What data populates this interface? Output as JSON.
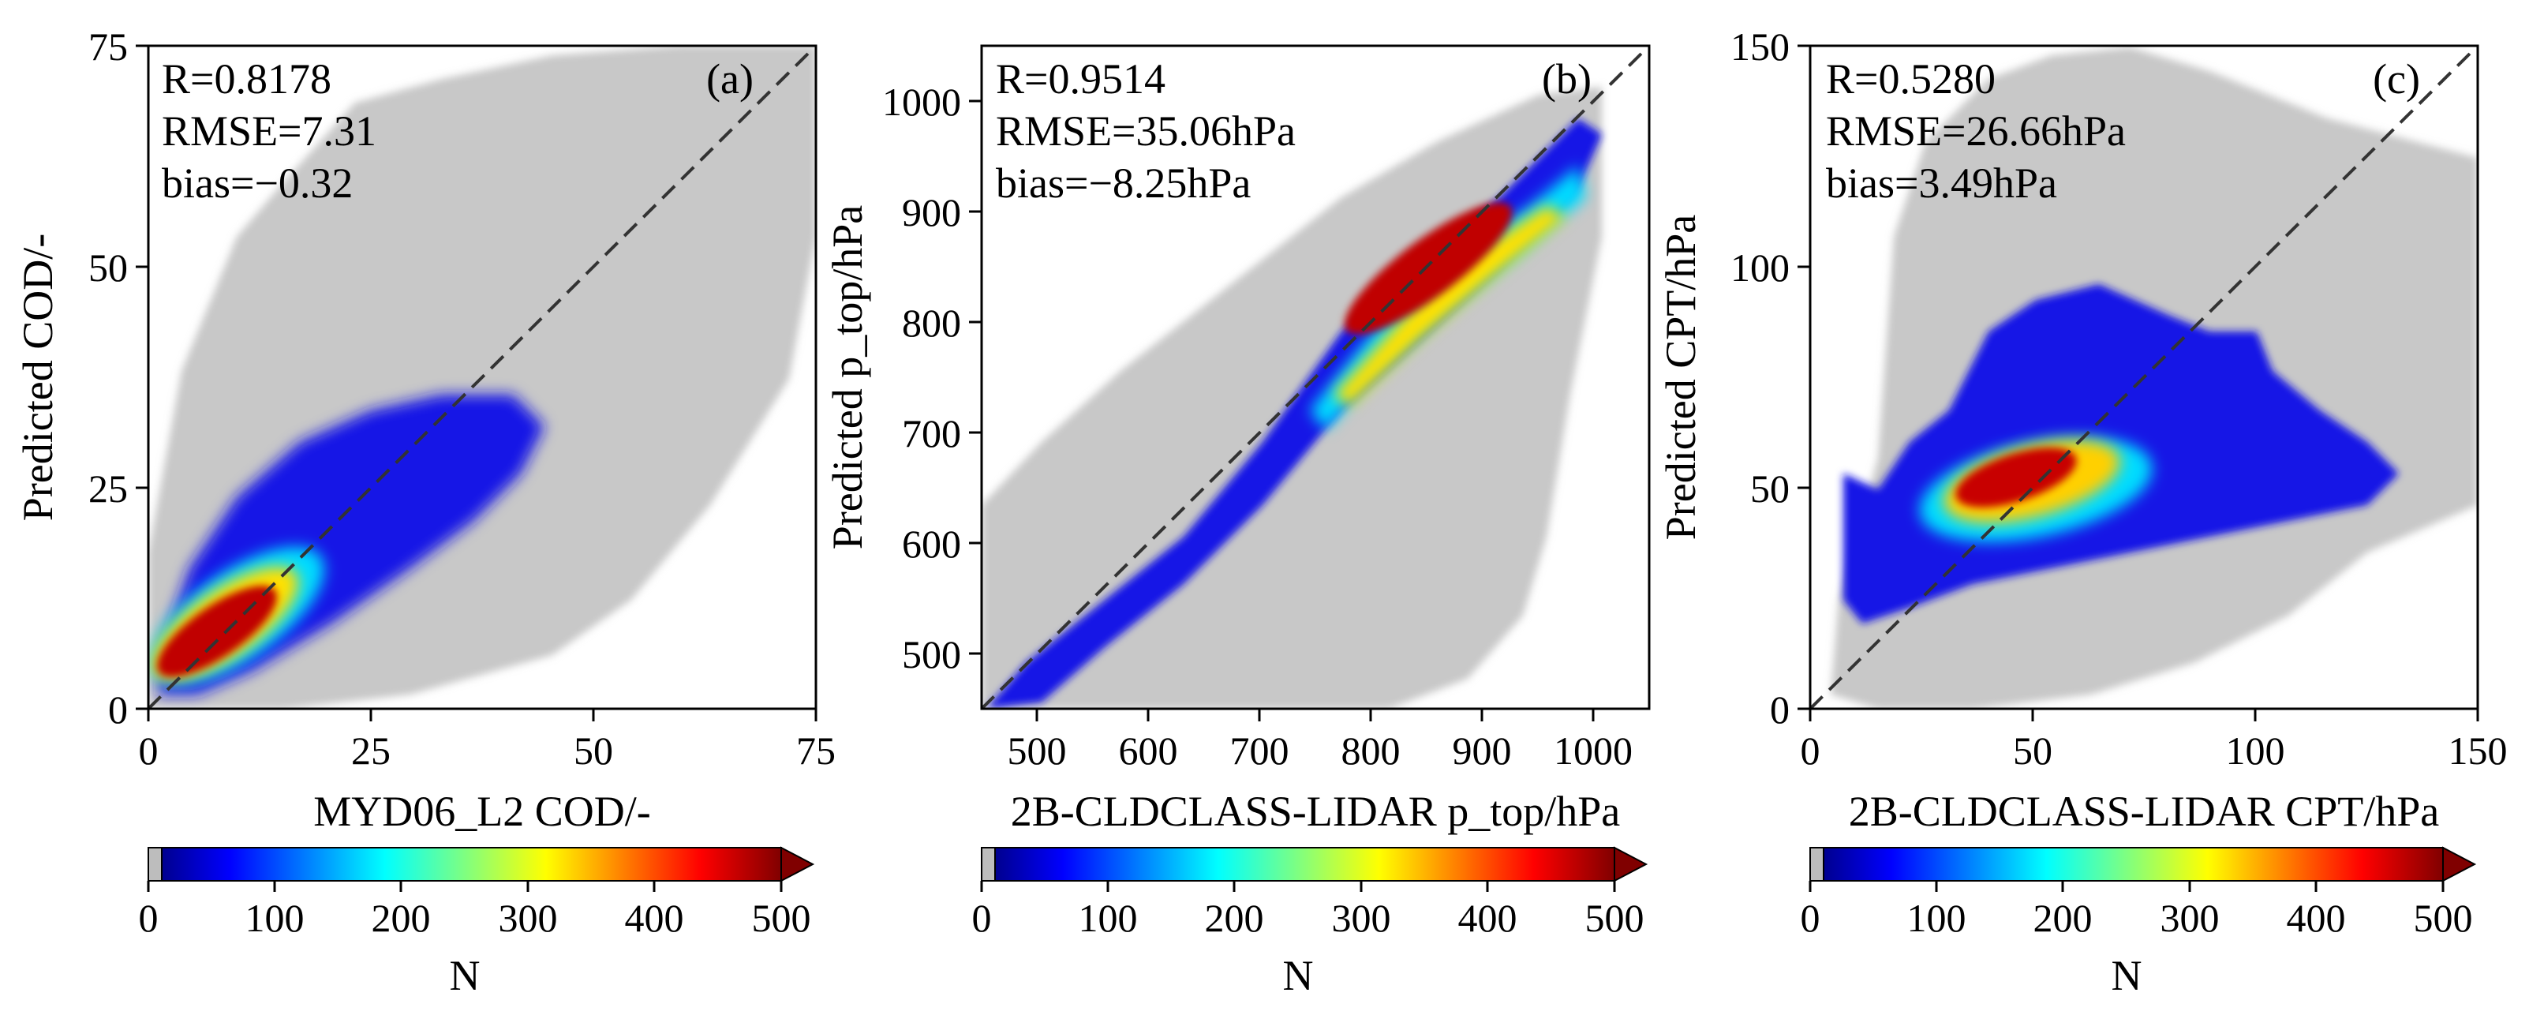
{
  "chart_data": [
    {
      "type": "heatmap",
      "panel_label": "(a)",
      "xlabel": "MYD06_L2 COD/-",
      "ylabel": "Predicted COD/-",
      "xlim": [
        0,
        75
      ],
      "ylim": [
        0,
        75
      ],
      "xticks": [
        "0",
        "25",
        "50",
        "75"
      ],
      "yticks": [
        "0",
        "25",
        "50",
        "75"
      ],
      "stats": [
        "R=0.8178",
        "RMSE=7.31",
        "bias=−0.32"
      ],
      "reference_line": "1:1 dashed",
      "colorbar": {
        "label": "N",
        "min": 0,
        "max": 500,
        "ticks": [
          "0",
          "100",
          "200",
          "300",
          "400",
          "500"
        ],
        "extend": "max"
      }
    },
    {
      "type": "heatmap",
      "panel_label": "(b)",
      "xlabel": "2B-CLDCLASS-LIDAR p_top/hPa",
      "ylabel": "Predicted p_top/hPa",
      "xlim": [
        450,
        1050
      ],
      "ylim": [
        450,
        1050
      ],
      "xticks": [
        "500",
        "600",
        "700",
        "800",
        "900",
        "1000"
      ],
      "yticks": [
        "500",
        "600",
        "700",
        "800",
        "900",
        "1000"
      ],
      "stats": [
        "R=0.9514",
        "RMSE=35.06hPa",
        "bias=−8.25hPa"
      ],
      "reference_line": "1:1 dashed",
      "colorbar": {
        "label": "N",
        "min": 0,
        "max": 500,
        "ticks": [
          "0",
          "100",
          "200",
          "300",
          "400",
          "500"
        ],
        "extend": "max"
      }
    },
    {
      "type": "heatmap",
      "panel_label": "(c)",
      "xlabel": "2B-CLDCLASS-LIDAR CPT/hPa",
      "ylabel": "Predicted CPT/hPa",
      "xlim": [
        0,
        150
      ],
      "ylim": [
        0,
        150
      ],
      "xticks": [
        "0",
        "50",
        "100",
        "150"
      ],
      "yticks": [
        "0",
        "50",
        "100",
        "150"
      ],
      "stats": [
        "R=0.5280",
        "RMSE=26.66hPa",
        "bias=3.49hPa"
      ],
      "reference_line": "1:1 dashed",
      "colorbar": {
        "label": "N",
        "min": 0,
        "max": 500,
        "ticks": [
          "0",
          "100",
          "200",
          "300",
          "400",
          "500"
        ],
        "extend": "max"
      }
    }
  ]
}
